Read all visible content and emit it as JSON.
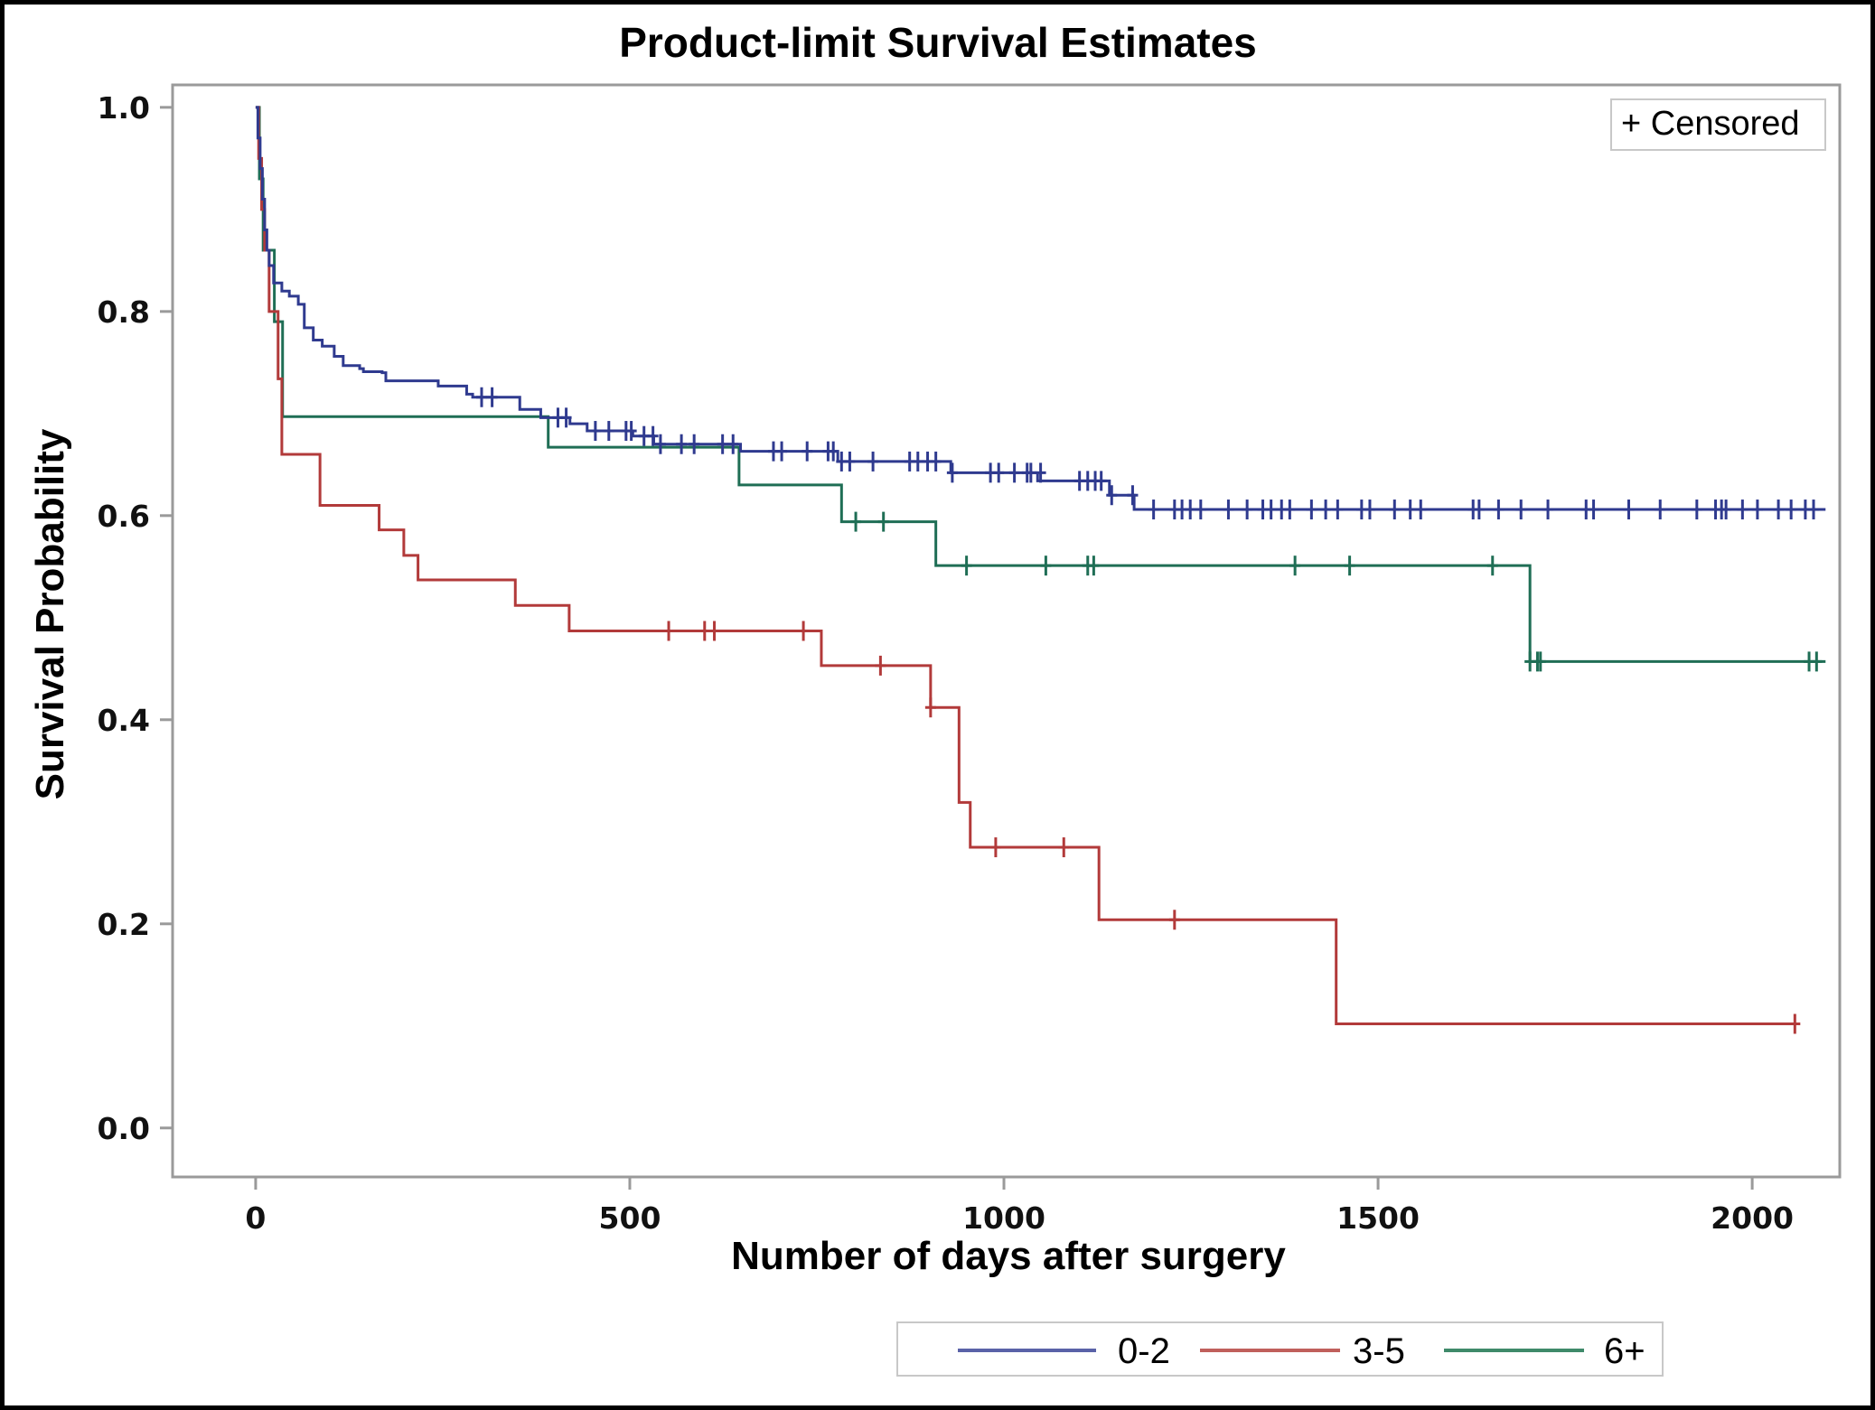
{
  "chart_data": {
    "type": "line",
    "subtype": "kaplan-meier-step",
    "title": "Product-limit Survival Estimates",
    "xlabel": "Number of days after surgery",
    "ylabel": "Survival Probability",
    "xlim": [
      -111,
      2117
    ],
    "ylim": [
      -0.048,
      1.022
    ],
    "xticks": [
      0,
      500,
      1000,
      1500,
      2000
    ],
    "xtick_labels": [
      "0",
      "500",
      "1000",
      "1500",
      "2000"
    ],
    "yticks": [
      0.0,
      0.2,
      0.4,
      0.6,
      0.8,
      1.0
    ],
    "ytick_labels": [
      "0.0",
      "0.2",
      "0.4",
      "0.6",
      "0.8",
      "1.0"
    ],
    "grid": false,
    "censor_legend": {
      "label": "+ Censored",
      "placement": "top-right"
    },
    "legend": {
      "placement": "bottom-right-outside"
    },
    "series": [
      {
        "name": "0-2",
        "color": "#2f3a8f",
        "legend_color": "#5a62a8",
        "steps": [
          [
            0,
            1.0
          ],
          [
            3,
            0.97
          ],
          [
            6,
            0.94
          ],
          [
            9,
            0.91
          ],
          [
            12,
            0.88
          ],
          [
            15,
            0.86
          ],
          [
            18,
            0.845
          ],
          [
            24,
            0.828
          ],
          [
            35,
            0.82
          ],
          [
            45,
            0.815
          ],
          [
            57,
            0.807
          ],
          [
            65,
            0.784
          ],
          [
            77,
            0.772
          ],
          [
            89,
            0.766
          ],
          [
            105,
            0.756
          ],
          [
            117,
            0.747
          ],
          [
            139,
            0.744
          ],
          [
            144,
            0.741
          ],
          [
            169,
            0.74
          ],
          [
            174,
            0.732
          ],
          [
            244,
            0.727
          ],
          [
            282,
            0.719
          ],
          [
            290,
            0.716
          ],
          [
            353,
            0.704
          ],
          [
            381,
            0.696
          ],
          [
            420,
            0.69
          ],
          [
            443,
            0.683
          ],
          [
            504,
            0.678
          ],
          [
            532,
            0.67
          ],
          [
            648,
            0.663
          ],
          [
            778,
            0.653
          ],
          [
            929,
            0.642
          ],
          [
            1045,
            0.634
          ],
          [
            1141,
            0.62
          ],
          [
            1174,
            0.606
          ]
        ],
        "end": 2098,
        "censored": [
          [
            302,
            0.716
          ],
          [
            316,
            0.716
          ],
          [
            404,
            0.696
          ],
          [
            415,
            0.696
          ],
          [
            454,
            0.683
          ],
          [
            472,
            0.683
          ],
          [
            495,
            0.683
          ],
          [
            502,
            0.683
          ],
          [
            519,
            0.678
          ],
          [
            531,
            0.678
          ],
          [
            541,
            0.67
          ],
          [
            569,
            0.67
          ],
          [
            586,
            0.67
          ],
          [
            624,
            0.67
          ],
          [
            638,
            0.67
          ],
          [
            692,
            0.663
          ],
          [
            703,
            0.663
          ],
          [
            737,
            0.663
          ],
          [
            765,
            0.663
          ],
          [
            772,
            0.663
          ],
          [
            783,
            0.653
          ],
          [
            794,
            0.653
          ],
          [
            825,
            0.653
          ],
          [
            874,
            0.653
          ],
          [
            885,
            0.653
          ],
          [
            898,
            0.653
          ],
          [
            909,
            0.653
          ],
          [
            931,
            0.642
          ],
          [
            982,
            0.642
          ],
          [
            993,
            0.642
          ],
          [
            1014,
            0.642
          ],
          [
            1031,
            0.642
          ],
          [
            1036,
            0.642
          ],
          [
            1049,
            0.642
          ],
          [
            1101,
            0.634
          ],
          [
            1112,
            0.634
          ],
          [
            1122,
            0.634
          ],
          [
            1130,
            0.634
          ],
          [
            1144,
            0.62
          ],
          [
            1172,
            0.62
          ],
          [
            1200,
            0.606
          ],
          [
            1228,
            0.606
          ],
          [
            1238,
            0.606
          ],
          [
            1249,
            0.606
          ],
          [
            1263,
            0.606
          ],
          [
            1300,
            0.606
          ],
          [
            1325,
            0.606
          ],
          [
            1346,
            0.606
          ],
          [
            1357,
            0.606
          ],
          [
            1371,
            0.606
          ],
          [
            1382,
            0.606
          ],
          [
            1411,
            0.606
          ],
          [
            1430,
            0.606
          ],
          [
            1446,
            0.606
          ],
          [
            1478,
            0.606
          ],
          [
            1489,
            0.606
          ],
          [
            1522,
            0.606
          ],
          [
            1543,
            0.606
          ],
          [
            1557,
            0.606
          ],
          [
            1627,
            0.606
          ],
          [
            1635,
            0.606
          ],
          [
            1661,
            0.606
          ],
          [
            1691,
            0.606
          ],
          [
            1727,
            0.606
          ],
          [
            1778,
            0.606
          ],
          [
            1788,
            0.606
          ],
          [
            1835,
            0.606
          ],
          [
            1877,
            0.606
          ],
          [
            1926,
            0.606
          ],
          [
            1951,
            0.606
          ],
          [
            1959,
            0.606
          ],
          [
            1965,
            0.606
          ],
          [
            1987,
            0.606
          ],
          [
            2007,
            0.606
          ],
          [
            2035,
            0.606
          ],
          [
            2052,
            0.606
          ],
          [
            2071,
            0.606
          ],
          [
            2082,
            0.606
          ]
        ]
      },
      {
        "name": "3-5",
        "color": "#b23a3a",
        "legend_color": "#c0605c",
        "steps": [
          [
            0,
            1.0
          ],
          [
            4,
            0.95
          ],
          [
            8,
            0.9
          ],
          [
            12,
            0.86
          ],
          [
            18,
            0.8
          ],
          [
            30,
            0.734
          ],
          [
            35,
            0.66
          ],
          [
            86,
            0.61
          ],
          [
            165,
            0.586
          ],
          [
            198,
            0.561
          ],
          [
            217,
            0.537
          ],
          [
            347,
            0.512
          ],
          [
            419,
            0.487
          ],
          [
            756,
            0.453
          ],
          [
            902,
            0.412
          ],
          [
            940,
            0.319
          ],
          [
            955,
            0.275
          ],
          [
            1127,
            0.204
          ],
          [
            1444,
            0.102
          ]
        ],
        "end": 2057,
        "censored": [
          [
            552,
            0.487
          ],
          [
            600,
            0.487
          ],
          [
            613,
            0.487
          ],
          [
            732,
            0.487
          ],
          [
            835,
            0.453
          ],
          [
            902,
            0.412
          ],
          [
            989,
            0.275
          ],
          [
            1080,
            0.275
          ],
          [
            1228,
            0.204
          ],
          [
            2057,
            0.102
          ]
        ]
      },
      {
        "name": "6+",
        "color": "#1f6e55",
        "legend_color": "#3f8a6a",
        "steps": [
          [
            0,
            1.0
          ],
          [
            5,
            0.93
          ],
          [
            10,
            0.86
          ],
          [
            25,
            0.79
          ],
          [
            36,
            0.697
          ],
          [
            391,
            0.667
          ],
          [
            646,
            0.63
          ],
          [
            783,
            0.594
          ],
          [
            909,
            0.551
          ],
          [
            1703,
            0.457
          ]
        ],
        "end": 2098,
        "censored": [
          [
            802,
            0.594
          ],
          [
            839,
            0.594
          ],
          [
            950,
            0.551
          ],
          [
            1056,
            0.551
          ],
          [
            1112,
            0.551
          ],
          [
            1120,
            0.551
          ],
          [
            1389,
            0.551
          ],
          [
            1462,
            0.551
          ],
          [
            1653,
            0.551
          ],
          [
            1703,
            0.457
          ],
          [
            1713,
            0.457
          ],
          [
            1717,
            0.457
          ],
          [
            2076,
            0.457
          ],
          [
            2086,
            0.457
          ]
        ]
      }
    ]
  }
}
